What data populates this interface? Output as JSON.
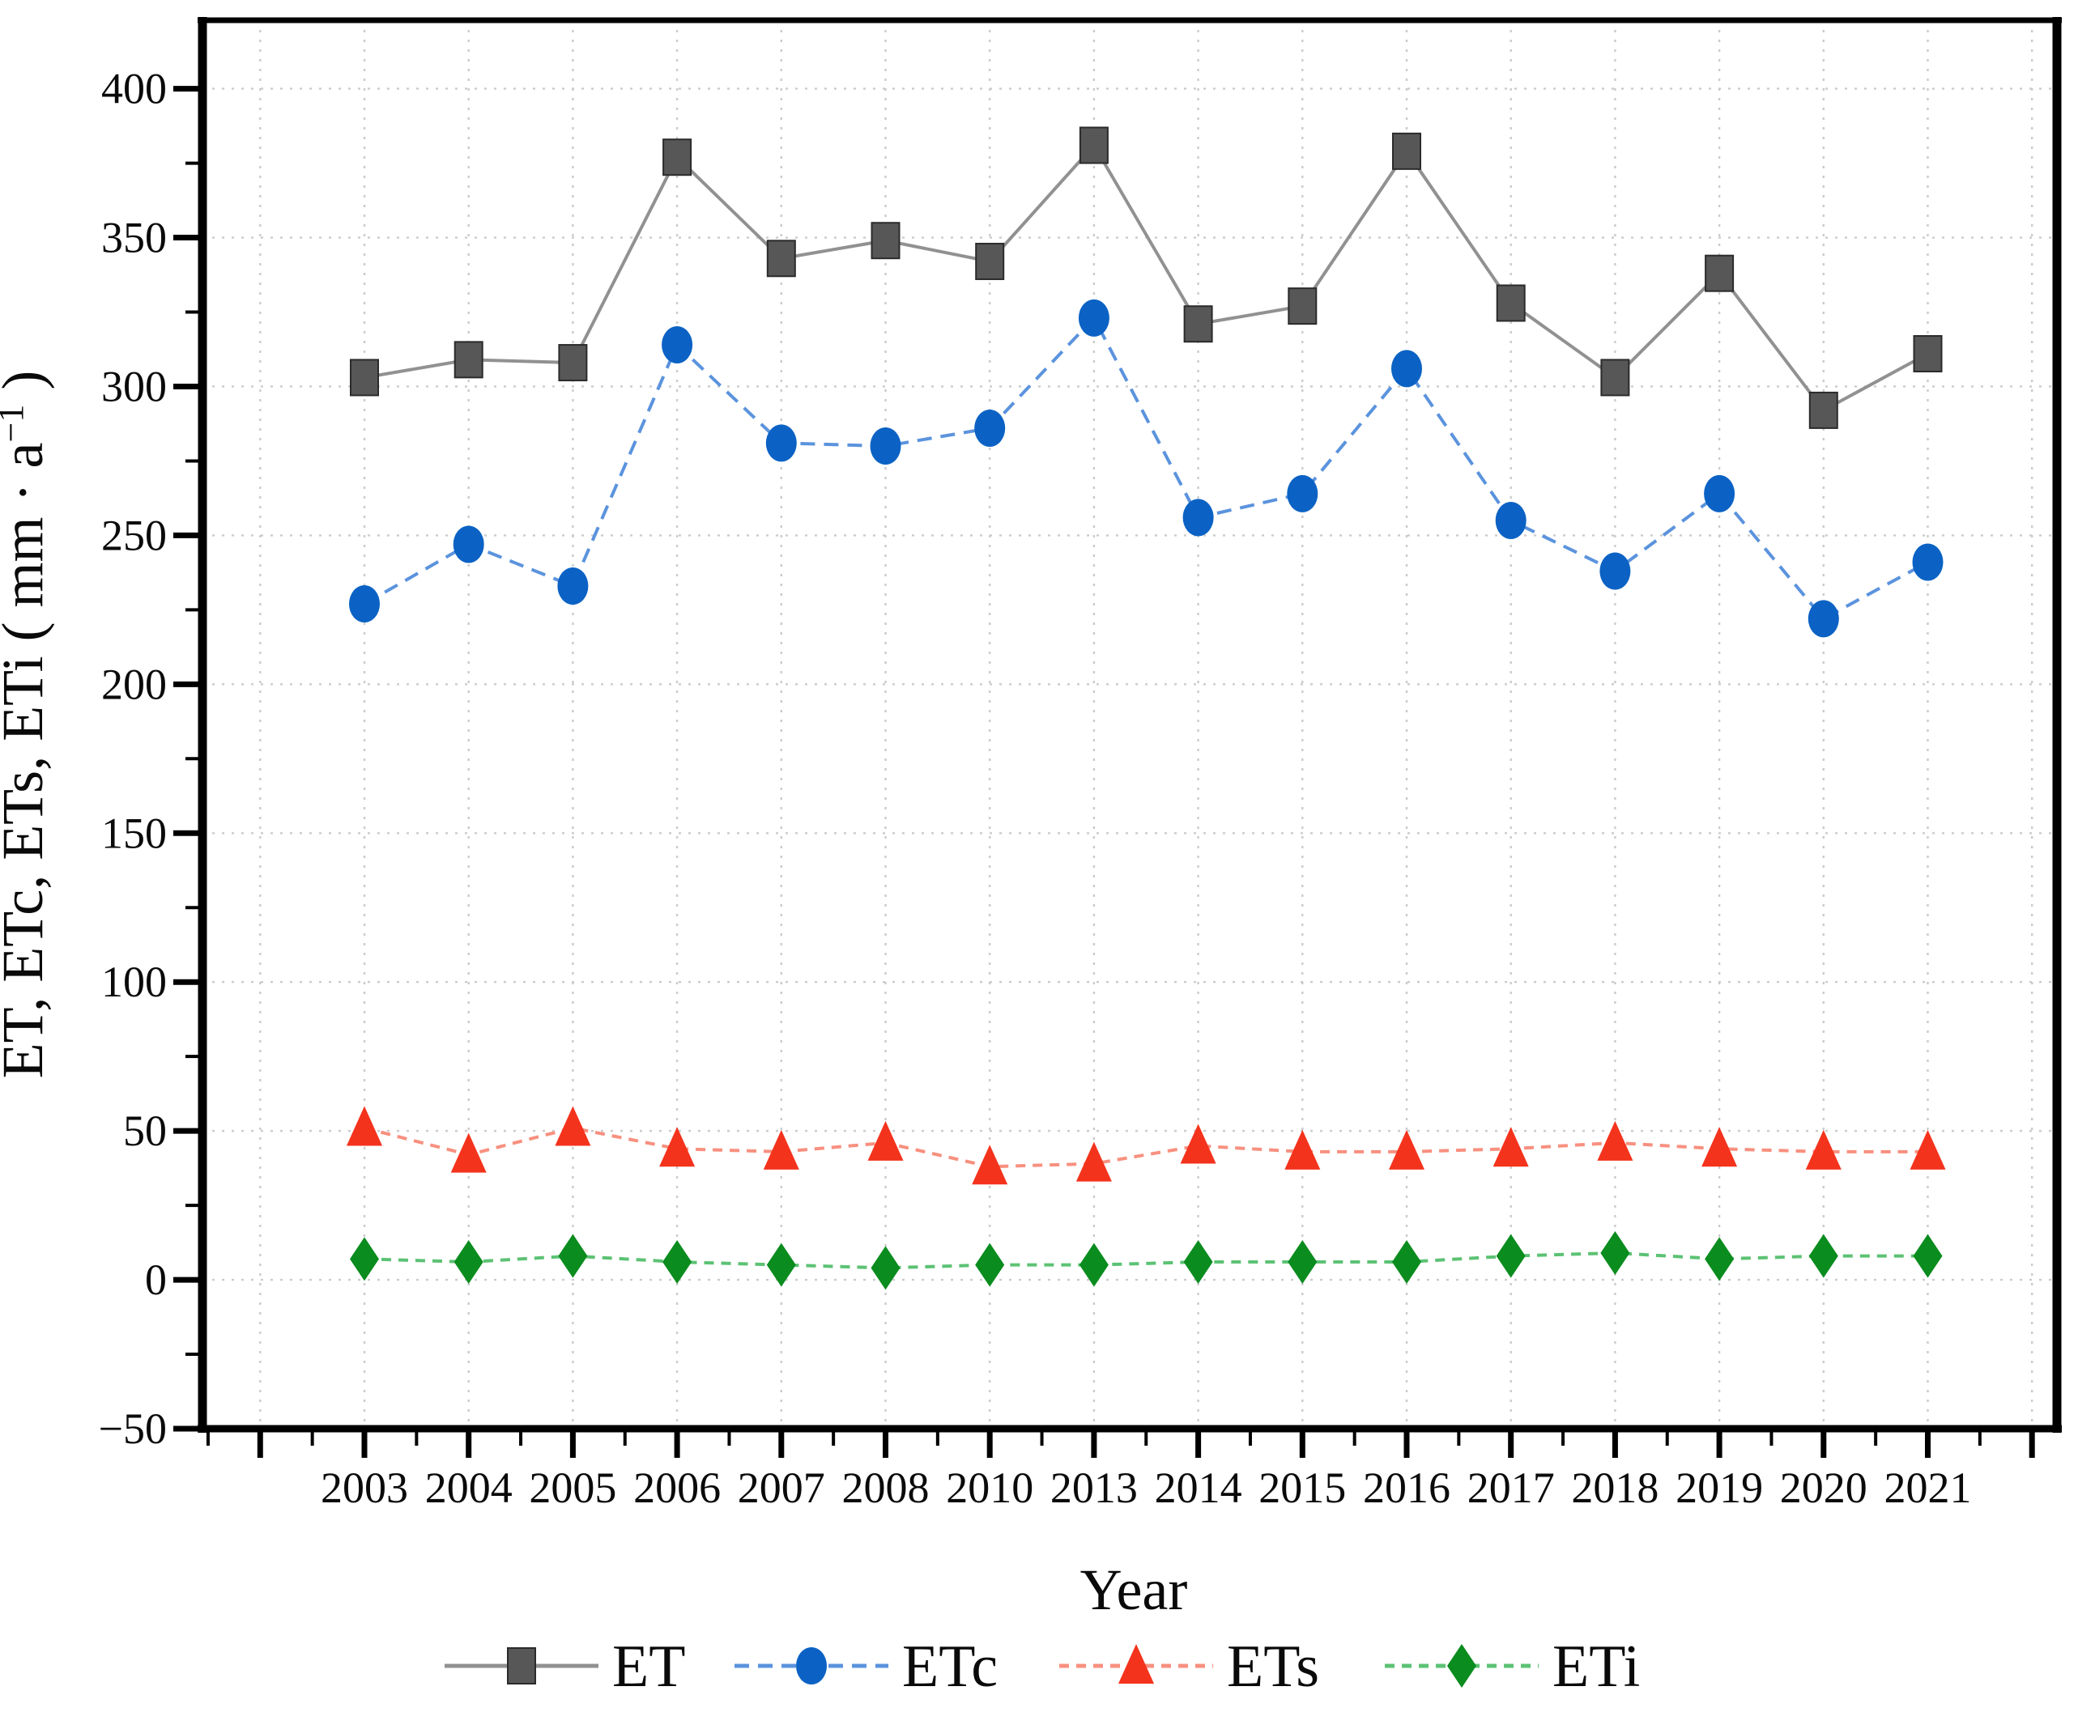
{
  "figure": {
    "background": "#ffffff"
  },
  "chart_data": {
    "type": "line",
    "title": "",
    "xlabel": "Year",
    "ylabel": "ET、ETc、ETs、ETi（mm · a⁻¹）",
    "categories": [
      "2003",
      "2004",
      "2005",
      "2006",
      "2007",
      "2008",
      "2010",
      "2013",
      "2014",
      "2015",
      "2016",
      "2017",
      "2018",
      "2019",
      "2020",
      "2021"
    ],
    "series": [
      {
        "name": "ET",
        "marker": "square",
        "color": "#575757",
        "line_color": "#919191",
        "line_style": "solid",
        "dash": "",
        "values": [
          303,
          309,
          308,
          377,
          343,
          349,
          342,
          381,
          321,
          327,
          379,
          328,
          303,
          338,
          292,
          311
        ]
      },
      {
        "name": "ETc",
        "marker": "circle",
        "color": "#0B62C4",
        "line_color": "#5B93DD",
        "line_style": "dashed",
        "dash": "18 11",
        "values": [
          227,
          247,
          233,
          314,
          281,
          280,
          286,
          323,
          256,
          264,
          306,
          255,
          238,
          264,
          222,
          241
        ]
      },
      {
        "name": "ETs",
        "marker": "triangle",
        "color": "#F4331D",
        "line_color": "#F8907F",
        "line_style": "dashed",
        "dash": "12 9",
        "values": [
          51,
          42,
          51,
          44,
          43,
          46,
          38,
          39,
          45,
          43,
          43,
          44,
          46,
          44,
          43,
          43
        ]
      },
      {
        "name": "ETi",
        "marker": "diamond",
        "color": "#0A8C1E",
        "line_color": "#5CC274",
        "line_style": "dashed",
        "dash": "12 9",
        "values": [
          7,
          6,
          8,
          6,
          5,
          4,
          5,
          5,
          6,
          6,
          6,
          8,
          9,
          7,
          8,
          8
        ]
      }
    ],
    "ylim": [
      -50,
      423
    ],
    "yticks": [
      -50,
      0,
      50,
      100,
      150,
      200,
      250,
      300,
      350,
      400
    ],
    "y_minor_step": 25,
    "grid": "dotted",
    "grid_color": "#CBCBCB",
    "legend_position": "bottom",
    "legend_labels": [
      "ET",
      "ETc",
      "ETs",
      "ETi"
    ]
  }
}
